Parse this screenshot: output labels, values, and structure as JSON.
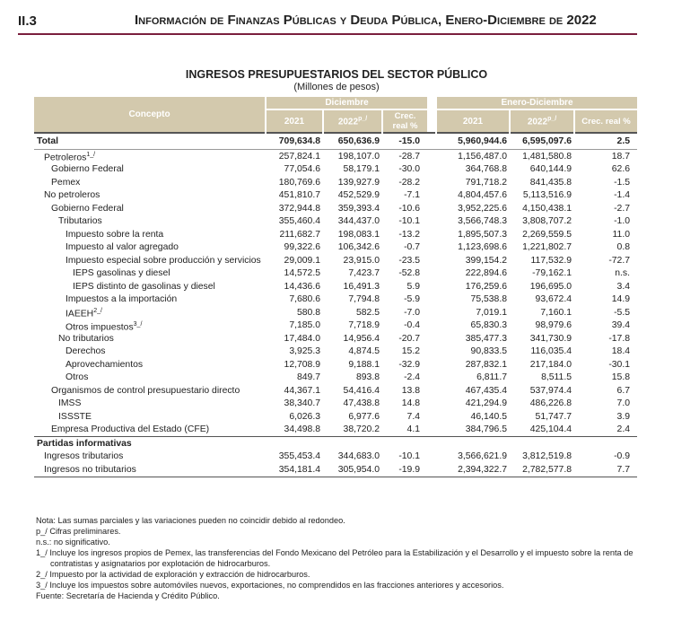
{
  "header": {
    "section": "II.3",
    "title": "Información de Finanzas Públicas y Deuda Pública, Enero-Diciembre de 2022"
  },
  "table": {
    "title": "INGRESOS PRESUPUESTARIOS DEL SECTOR PÚBLICO",
    "subtitle": "(Millones de pesos)",
    "columns": {
      "concept": "Concepto",
      "groups": [
        "Diciembre",
        "Enero-Diciembre"
      ],
      "years": [
        "2021",
        "2022"
      ],
      "preliminary": "p_/",
      "growth": "Crec. real %"
    },
    "rows": [
      {
        "label": "Total",
        "values": [
          "709,634.8",
          "650,636.9",
          "-15.0",
          "5,960,944.6",
          "6,595,097.6",
          "2.5"
        ]
      },
      {
        "label": "Petroleros",
        "note": "1_/",
        "values": [
          "257,824.1",
          "198,107.0",
          "-28.7",
          "1,156,487.0",
          "1,481,580.8",
          "18.7"
        ]
      },
      {
        "label": "Gobierno Federal",
        "values": [
          "77,054.6",
          "58,179.1",
          "-30.0",
          "364,768.8",
          "640,144.9",
          "62.6"
        ]
      },
      {
        "label": "Pemex",
        "values": [
          "180,769.6",
          "139,927.9",
          "-28.2",
          "791,718.2",
          "841,435.8",
          "-1.5"
        ]
      },
      {
        "label": "No petroleros",
        "values": [
          "451,810.7",
          "452,529.9",
          "-7.1",
          "4,804,457.6",
          "5,113,516.9",
          "-1.4"
        ]
      },
      {
        "label": "Gobierno Federal",
        "values": [
          "372,944.8",
          "359,393.4",
          "-10.6",
          "3,952,225.6",
          "4,150,438.1",
          "-2.7"
        ]
      },
      {
        "label": "Tributarios",
        "values": [
          "355,460.4",
          "344,437.0",
          "-10.1",
          "3,566,748.3",
          "3,808,707.2",
          "-1.0"
        ]
      },
      {
        "label": "Impuesto sobre la renta",
        "values": [
          "211,682.7",
          "198,083.1",
          "-13.2",
          "1,895,507.3",
          "2,269,559.5",
          "11.0"
        ]
      },
      {
        "label": "Impuesto al valor agregado",
        "values": [
          "99,322.6",
          "106,342.6",
          "-0.7",
          "1,123,698.6",
          "1,221,802.7",
          "0.8"
        ]
      },
      {
        "label": "Impuesto especial sobre producción y servicios",
        "values": [
          "29,009.1",
          "23,915.0",
          "-23.5",
          "399,154.2",
          "117,532.9",
          "-72.7"
        ]
      },
      {
        "label": "IEPS gasolinas y diesel",
        "values": [
          "14,572.5",
          "7,423.7",
          "-52.8",
          "222,894.6",
          "-79,162.1",
          "n.s."
        ]
      },
      {
        "label": "IEPS distinto de gasolinas y diesel",
        "values": [
          "14,436.6",
          "16,491.3",
          "5.9",
          "176,259.6",
          "196,695.0",
          "3.4"
        ]
      },
      {
        "label": "Impuestos a la importación",
        "values": [
          "7,680.6",
          "7,794.8",
          "-5.9",
          "75,538.8",
          "93,672.4",
          "14.9"
        ]
      },
      {
        "label": "IAEEH",
        "note": "2_/",
        "values": [
          "580.8",
          "582.5",
          "-7.0",
          "7,019.1",
          "7,160.1",
          "-5.5"
        ]
      },
      {
        "label": "Otros impuestos",
        "note": "3_/",
        "values": [
          "7,185.0",
          "7,718.9",
          "-0.4",
          "65,830.3",
          "98,979.6",
          "39.4"
        ]
      },
      {
        "label": "No tributarios",
        "values": [
          "17,484.0",
          "14,956.4",
          "-20.7",
          "385,477.3",
          "341,730.9",
          "-17.8"
        ]
      },
      {
        "label": "Derechos",
        "values": [
          "3,925.3",
          "4,874.5",
          "15.2",
          "90,833.5",
          "116,035.4",
          "18.4"
        ]
      },
      {
        "label": "Aprovechamientos",
        "values": [
          "12,708.9",
          "9,188.1",
          "-32.9",
          "287,832.1",
          "217,184.0",
          "-30.1"
        ]
      },
      {
        "label": "Otros",
        "values": [
          "849.7",
          "893.8",
          "-2.4",
          "6,811.7",
          "8,511.5",
          "15.8"
        ]
      },
      {
        "label": "Organismos de control presupuestario directo",
        "values": [
          "44,367.1",
          "54,416.4",
          "13.8",
          "467,435.4",
          "537,974.4",
          "6.7"
        ]
      },
      {
        "label": "IMSS",
        "values": [
          "38,340.7",
          "47,438.8",
          "14.8",
          "421,294.9",
          "486,226.8",
          "7.0"
        ]
      },
      {
        "label": "ISSSTE",
        "values": [
          "6,026.3",
          "6,977.6",
          "7.4",
          "46,140.5",
          "51,747.7",
          "3.9"
        ]
      },
      {
        "label": "Empresa Productiva del Estado (CFE)",
        "values": [
          "34,498.8",
          "38,720.2",
          "4.1",
          "384,796.5",
          "425,104.4",
          "2.4"
        ]
      },
      {
        "label": "Partidas informativas"
      },
      {
        "label": "Ingresos tributarios",
        "values": [
          "355,453.4",
          "344,683.0",
          "-10.1",
          "3,566,621.9",
          "3,812,519.8",
          "-0.9"
        ]
      },
      {
        "label": "Ingresos no tributarios",
        "values": [
          "354,181.4",
          "305,954.0",
          "-19.9",
          "2,394,322.7",
          "2,782,577.8",
          "7.7"
        ]
      }
    ]
  },
  "notes": [
    "Nota: Las sumas parciales y las variaciones pueden no coincidir debido al redondeo.",
    "p_/ Cifras preliminares.",
    "n.s.: no significativo.",
    "1_/ Incluye los ingresos propios de Pemex, las transferencias del Fondo Mexicano del Petróleo para la Estabilización y el Desarrollo y el impuesto sobre la renta de contratistas y asignatarios por explotación de hidrocarburos.",
    "2_/ Impuesto por la actividad de exploración y extracción de hidrocarburos.",
    "3_/ Incluye los impuestos sobre automóviles nuevos, exportaciones, no comprendidos en las fracciones anteriores y accesorios.",
    "Fuente: Secretaría de Hacienda y Crédito Público."
  ]
}
